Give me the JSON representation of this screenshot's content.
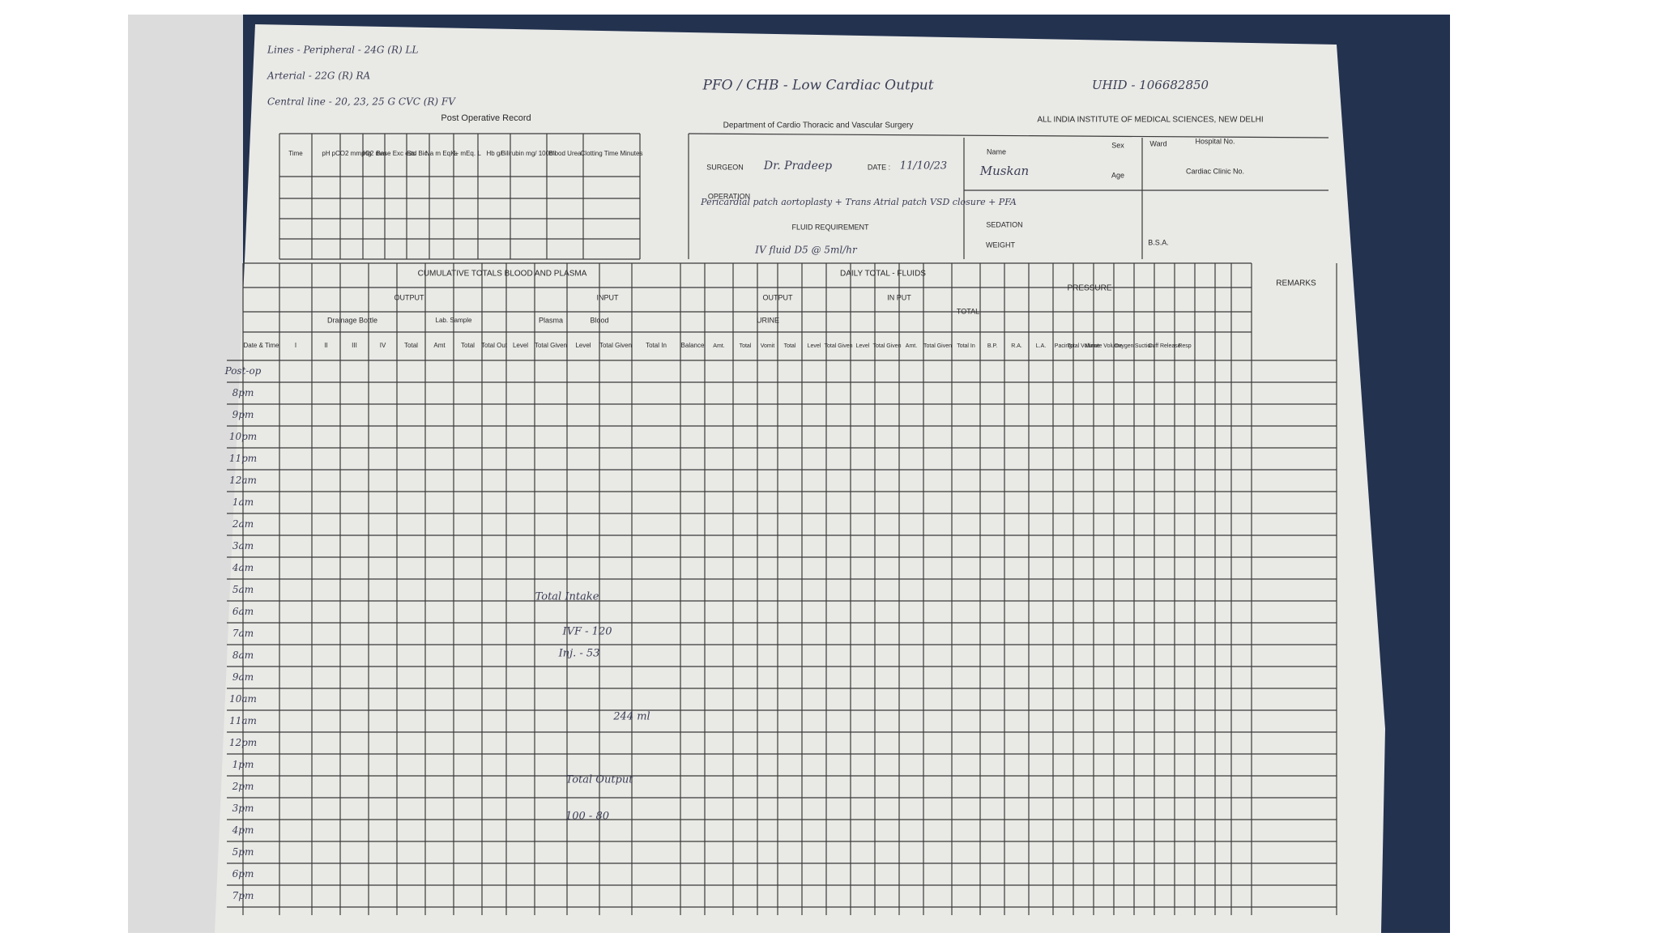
{
  "header": {
    "record": "Post Operative Record",
    "department": "Department of Cardio Thoracic and Vascular Surgery",
    "institute": "ALL INDIA INSTITUTE OF MEDICAL SCIENCES, NEW DELHI",
    "diagnosis": "PFO / CHB - Low Cardiac Output",
    "uhid": "UHID - 106682850",
    "lines": [
      "Lines - Peripheral - 24G (R) LL",
      "Arterial - 22G (R) RA",
      "Central line - 20, 23, 25 G CVC (R) FV"
    ]
  },
  "blood_gas": {
    "columns": [
      "Time",
      "pH",
      "pCO2 mm Hg",
      "pO2 mm",
      "Base Exc ess",
      "Std Bic.",
      "Na m Eq. L",
      "K+ mEq. L",
      "Hb g/",
      "Bilirubin mg/ 100ml",
      "Blood Urea",
      "Clotting Time Minutes"
    ]
  },
  "surgery": {
    "surgeon_label": "SURGEON",
    "surgeon": "Dr. Pradeep",
    "date_label": "DATE :",
    "date": "11/10/23",
    "operation_label": "OPERATION",
    "operation": "Pericardial patch aortoplasty + Trans Atrial patch VSD closure + PFA",
    "fluid_label": "FLUID REQUIREMENT",
    "fluid": "IV fluid D5 @ 5ml/hr",
    "name_label": "Name",
    "name": "Muskan",
    "sex_label": "Sex",
    "ward_label": "Ward",
    "hospital_label": "Hospital No.",
    "age_label": "Age",
    "clinic_label": "Cardiac Clinic No.",
    "sedation_label": "SEDATION",
    "weight_label": "WEIGHT",
    "bsa_label": "B.S.A."
  },
  "cumulative": {
    "title": "CUMULATIVE TOTALS BLOOD AND PLASMA",
    "output": "OUTPUT",
    "input": "INPUT",
    "drainage": "Drainage Bottle",
    "lab": "Lab. Sample",
    "plasma": "Plasma",
    "blood": "Blood",
    "columns": [
      "Date & Time",
      "I",
      "II",
      "III",
      "IV",
      "Total",
      "Amt",
      "Total",
      "Total Out",
      "Level",
      "Total Given",
      "Level",
      "Total Given",
      "Total In",
      "Balance"
    ]
  },
  "daily": {
    "title": "DAILY TOTAL - FLUIDS",
    "output": "OUTPUT",
    "input": "IN PUT",
    "total": "TOTAL",
    "urine": "URINE",
    "pressure": "PRESSURE",
    "remarks": "REMARKS",
    "columns": [
      "Amt.",
      "Total",
      "Vomit",
      "Total",
      "Level",
      "Total Given",
      "Level",
      "Total Given",
      "Amt.",
      "Total Given",
      "Total In",
      "B.P.",
      "R.A.",
      "L.A.",
      "Pacing",
      "Total Volume",
      "Minute Volume",
      "Oxygen",
      "Suction",
      "Cuff Release",
      "Resp"
    ]
  },
  "rows": [
    "Post-op",
    "8pm",
    "9pm",
    "10pm",
    "11pm",
    "12am",
    "1am",
    "2am",
    "3am",
    "4am",
    "5am",
    "6am",
    "7am",
    "8am",
    "9am",
    "10am",
    "11am",
    "12pm",
    "1pm",
    "2pm",
    "3pm",
    "4pm",
    "5pm",
    "6pm",
    "7pm"
  ],
  "notes": [
    "Total Intake",
    "IVF - 120",
    "Inj. - 53",
    "Total Output",
    "244 ml",
    "100 - 80"
  ]
}
